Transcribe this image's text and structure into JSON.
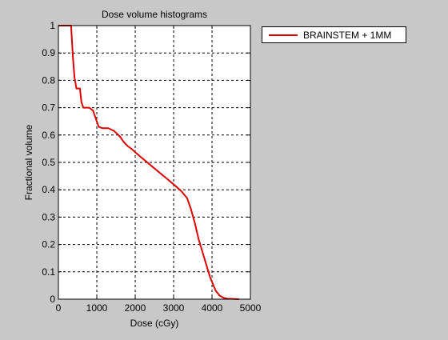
{
  "chart_data": {
    "type": "line",
    "title": "Dose volume histograms",
    "xlabel": "Dose (cGy)",
    "ylabel": "Fractional volume",
    "xlim": [
      0,
      5000
    ],
    "ylim": [
      0,
      1
    ],
    "x_ticks": [
      "0",
      "1000",
      "2000",
      "3000",
      "4000",
      "5000"
    ],
    "y_ticks": [
      "0",
      "0.1",
      "0.2",
      "0.3",
      "0.4",
      "0.5",
      "0.6",
      "0.7",
      "0.8",
      "0.9",
      "1"
    ],
    "grid": true,
    "legend_position": "outside-top-right",
    "series": [
      {
        "name": "BRAINSTEM + 1MM",
        "color": "#dd0000",
        "x": [
          0,
          330,
          380,
          420,
          470,
          560,
          600,
          650,
          800,
          900,
          950,
          1050,
          1150,
          1300,
          1450,
          1600,
          1700,
          1800,
          1900,
          2100,
          2400,
          2700,
          3000,
          3200,
          3350,
          3450,
          3550,
          3650,
          3800,
          3950,
          4100,
          4200,
          4300,
          4400,
          4550,
          4700
        ],
        "y": [
          1,
          1,
          0.88,
          0.81,
          0.77,
          0.77,
          0.72,
          0.7,
          0.7,
          0.69,
          0.67,
          0.63,
          0.625,
          0.625,
          0.615,
          0.595,
          0.575,
          0.56,
          0.55,
          0.525,
          0.49,
          0.455,
          0.42,
          0.395,
          0.37,
          0.33,
          0.28,
          0.22,
          0.15,
          0.08,
          0.03,
          0.013,
          0.005,
          0.002,
          0.001,
          0
        ]
      }
    ]
  }
}
